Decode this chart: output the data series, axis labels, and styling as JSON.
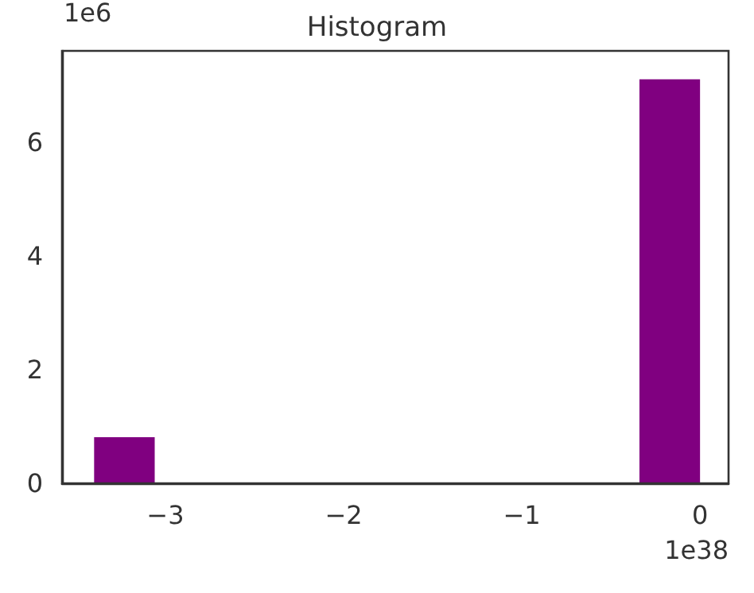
{
  "chart_data": {
    "type": "histogram",
    "title": "Histogram",
    "bins": [
      -3.4,
      -3.06,
      -2.72,
      -2.38,
      -2.04,
      -1.7,
      -1.36,
      -1.02,
      -0.68,
      -0.34,
      0
    ],
    "values": [
      0.81,
      0,
      0,
      0,
      0,
      0,
      0,
      0,
      0,
      7.1
    ],
    "color": "#800080",
    "xlim": [
      -3.58,
      0.16
    ],
    "xticks": [
      -3,
      -2,
      -1,
      0
    ],
    "ylim": [
      0,
      7.6
    ],
    "yticks": [
      0,
      2,
      4,
      6
    ],
    "annotations": [
      "1e6",
      "1e38"
    ],
    "grid": false,
    "legend": false
  }
}
